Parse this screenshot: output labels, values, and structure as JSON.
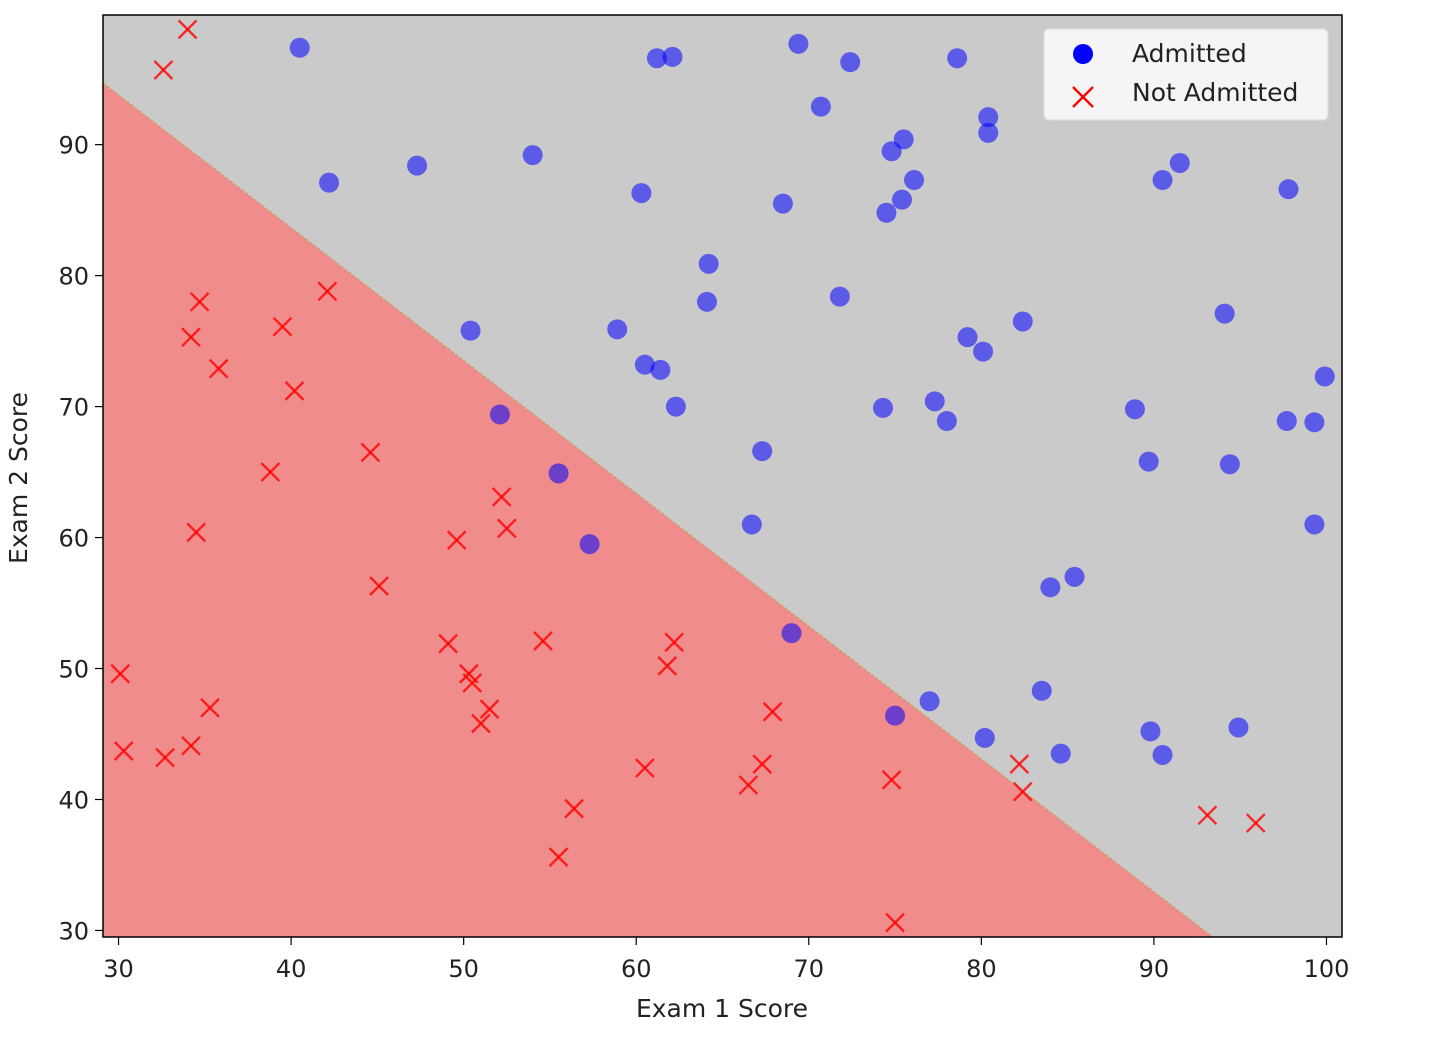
{
  "chart_data": {
    "type": "scatter",
    "title": "",
    "xlabel": "Exam 1 Score",
    "ylabel": "Exam 2 Score",
    "xlim": [
      29.1,
      100.9
    ],
    "ylim": [
      29.5,
      99.9
    ],
    "xticks": [
      30,
      40,
      50,
      60,
      70,
      80,
      90,
      100
    ],
    "yticks": [
      30,
      40,
      50,
      60,
      70,
      80,
      90
    ],
    "grid": false,
    "legend_position": "top-right",
    "decision_boundary": {
      "points": [
        [
          29.1,
          94.7
        ],
        [
          93.4,
          29.5
        ]
      ],
      "region_above_color": "#cacaca",
      "region_below_color": "#f08c8c"
    },
    "series": [
      {
        "name": "Admitted",
        "marker": "circle",
        "color": "#0000ff",
        "points": [
          [
            40.5,
            97.4
          ],
          [
            42.2,
            87.1
          ],
          [
            47.3,
            88.4
          ],
          [
            50.4,
            75.8
          ],
          [
            54.0,
            89.2
          ],
          [
            61.2,
            96.6
          ],
          [
            62.1,
            96.7
          ],
          [
            69.4,
            97.7
          ],
          [
            72.4,
            96.3
          ],
          [
            78.6,
            96.6
          ],
          [
            60.3,
            86.3
          ],
          [
            70.7,
            92.9
          ],
          [
            74.8,
            89.5
          ],
          [
            75.5,
            90.4
          ],
          [
            80.4,
            92.1
          ],
          [
            80.4,
            90.9
          ],
          [
            74.5,
            84.8
          ],
          [
            75.4,
            85.8
          ],
          [
            76.1,
            87.3
          ],
          [
            68.5,
            85.5
          ],
          [
            90.5,
            87.3
          ],
          [
            91.5,
            88.6
          ],
          [
            97.8,
            86.6
          ],
          [
            64.2,
            80.9
          ],
          [
            64.1,
            78.0
          ],
          [
            71.8,
            78.4
          ],
          [
            58.9,
            75.9
          ],
          [
            60.5,
            73.2
          ],
          [
            61.4,
            72.8
          ],
          [
            62.3,
            70.0
          ],
          [
            79.2,
            75.3
          ],
          [
            80.1,
            74.2
          ],
          [
            82.4,
            76.5
          ],
          [
            94.1,
            77.1
          ],
          [
            74.3,
            69.9
          ],
          [
            77.3,
            70.4
          ],
          [
            78.0,
            68.9
          ],
          [
            88.9,
            69.8
          ],
          [
            97.7,
            68.9
          ],
          [
            99.3,
            68.8
          ],
          [
            99.9,
            72.3
          ],
          [
            67.3,
            66.6
          ],
          [
            89.7,
            65.8
          ],
          [
            94.4,
            65.6
          ],
          [
            66.7,
            61.0
          ],
          [
            99.3,
            61.0
          ],
          [
            84.0,
            56.2
          ],
          [
            85.4,
            57.0
          ],
          [
            77.0,
            47.5
          ],
          [
            83.5,
            48.3
          ],
          [
            80.2,
            44.7
          ],
          [
            84.6,
            43.5
          ],
          [
            89.8,
            45.2
          ],
          [
            90.5,
            43.4
          ],
          [
            94.9,
            45.5
          ],
          [
            52.1,
            69.4
          ],
          [
            55.5,
            64.9
          ],
          [
            57.3,
            59.5
          ],
          [
            69.0,
            52.7
          ],
          [
            75.0,
            46.4
          ]
        ]
      },
      {
        "name": "Not Admitted",
        "marker": "x",
        "color": "#ff0000",
        "points": [
          [
            34.0,
            98.8
          ],
          [
            32.6,
            95.7
          ],
          [
            34.7,
            78.0
          ],
          [
            34.2,
            75.3
          ],
          [
            35.8,
            72.9
          ],
          [
            39.5,
            76.1
          ],
          [
            42.1,
            78.8
          ],
          [
            40.2,
            71.2
          ],
          [
            38.8,
            65.0
          ],
          [
            44.6,
            66.5
          ],
          [
            34.5,
            60.4
          ],
          [
            45.1,
            56.3
          ],
          [
            49.6,
            59.8
          ],
          [
            52.2,
            63.1
          ],
          [
            52.5,
            60.7
          ],
          [
            49.1,
            51.9
          ],
          [
            50.3,
            49.6
          ],
          [
            50.5,
            48.9
          ],
          [
            51.5,
            46.9
          ],
          [
            51.0,
            45.8
          ],
          [
            54.6,
            52.1
          ],
          [
            62.2,
            52.0
          ],
          [
            61.8,
            50.2
          ],
          [
            30.1,
            49.6
          ],
          [
            30.3,
            43.7
          ],
          [
            32.7,
            43.2
          ],
          [
            34.2,
            44.1
          ],
          [
            35.3,
            47.0
          ],
          [
            55.5,
            35.6
          ],
          [
            56.4,
            39.3
          ],
          [
            60.5,
            42.4
          ],
          [
            66.5,
            41.1
          ],
          [
            67.3,
            42.7
          ],
          [
            67.9,
            46.7
          ],
          [
            74.8,
            41.5
          ],
          [
            75.0,
            30.6
          ],
          [
            82.2,
            42.7
          ],
          [
            82.4,
            40.6
          ],
          [
            93.1,
            38.8
          ],
          [
            95.9,
            38.2
          ]
        ]
      }
    ]
  }
}
